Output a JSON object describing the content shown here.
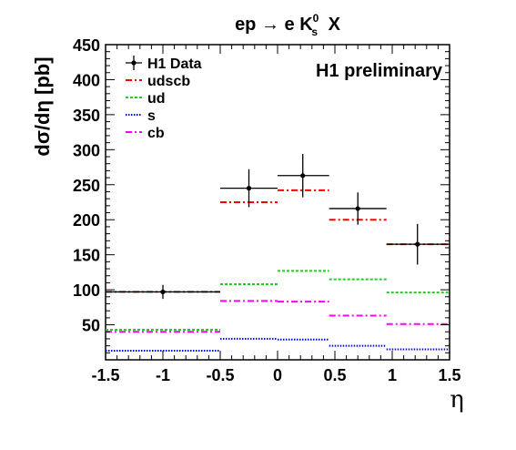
{
  "chart_data": {
    "type": "step",
    "title_parts": {
      "lhs": "ep",
      "arrow": "→",
      "e": "e K",
      "sup": "0",
      "sub": "s",
      "X": "X"
    },
    "ylabel": "dσ/dη [pb]",
    "xlabel": "η",
    "annotation": "H1 preliminary",
    "xlim": [
      -1.5,
      1.5
    ],
    "ylim": [
      0,
      450
    ],
    "xticks": [
      -1.5,
      -1,
      -0.5,
      0,
      0.5,
      1,
      1.5
    ],
    "xtick_labels": [
      "-1.5",
      "-1",
      "-0.5",
      "0",
      "0.5",
      "1",
      "1.5"
    ],
    "yticks": [
      50,
      100,
      150,
      200,
      250,
      300,
      350,
      400,
      450
    ],
    "ytick_labels": [
      "50",
      "100",
      "150",
      "200",
      "250",
      "300",
      "350",
      "400",
      "450"
    ],
    "bin_edges": [
      -1.5,
      -0.5,
      0.0,
      0.45,
      0.95,
      1.5
    ],
    "legend_position": "top-left",
    "data": {
      "name": "H1 Data",
      "x": [
        -1.0,
        -0.25,
        0.22,
        0.7,
        1.22
      ],
      "x_low": [
        -1.5,
        -0.5,
        0.0,
        0.45,
        0.95
      ],
      "x_high": [
        -0.5,
        0.0,
        0.45,
        0.95,
        1.5
      ],
      "y": [
        97,
        245,
        263,
        216,
        165
      ],
      "y_err": [
        10,
        27,
        31,
        23,
        29
      ],
      "color": "#000000"
    },
    "series": [
      {
        "name": "udscb",
        "values": [
          97,
          225,
          242,
          200,
          165
        ],
        "color": "#ff0000",
        "dash": "7,3,2,3",
        "width": 2
      },
      {
        "name": "ud",
        "values": [
          43,
          108,
          127,
          115,
          96
        ],
        "color": "#22cc22",
        "dash": "3,2",
        "width": 2
      },
      {
        "name": "s",
        "values": [
          13,
          30,
          29,
          20,
          15
        ],
        "color": "#0000ff",
        "dash": "1.5,1.5",
        "width": 2
      },
      {
        "name": "cb",
        "values": [
          40,
          84,
          83,
          63,
          51
        ],
        "color": "#ff00ff",
        "dash": "7,3,2,3",
        "width": 2
      }
    ]
  }
}
